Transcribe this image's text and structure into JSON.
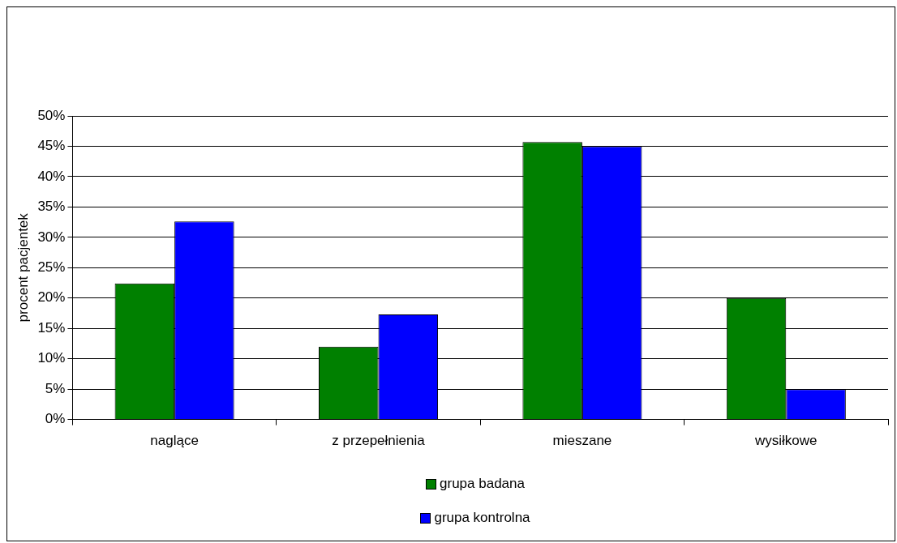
{
  "chart_data": {
    "type": "bar",
    "ylabel": "procent pacjentek",
    "categories": [
      "naglące",
      "z przepełnienia",
      "mieszane",
      "wysiłkowe"
    ],
    "series": [
      {
        "name": "grupa badana",
        "color": "#008000",
        "values": [
          22.4,
          12.0,
          45.7,
          20.0
        ]
      },
      {
        "name": "grupa kontrolna",
        "color": "#0000ff",
        "values": [
          32.6,
          17.3,
          45.0,
          5.0
        ]
      }
    ],
    "ylim": [
      0,
      50
    ],
    "yticks": [
      {
        "value": 0,
        "label": "0%"
      },
      {
        "value": 5,
        "label": "5%"
      },
      {
        "value": 10,
        "label": "10%"
      },
      {
        "value": 15,
        "label": "15%"
      },
      {
        "value": 20,
        "label": "20%"
      },
      {
        "value": 25,
        "label": "25%"
      },
      {
        "value": 30,
        "label": "30%"
      },
      {
        "value": 35,
        "label": "35%"
      },
      {
        "value": 40,
        "label": "40%"
      },
      {
        "value": 45,
        "label": "45%"
      },
      {
        "value": 50,
        "label": "50%"
      }
    ],
    "grid": "y",
    "legend": "bottom"
  }
}
